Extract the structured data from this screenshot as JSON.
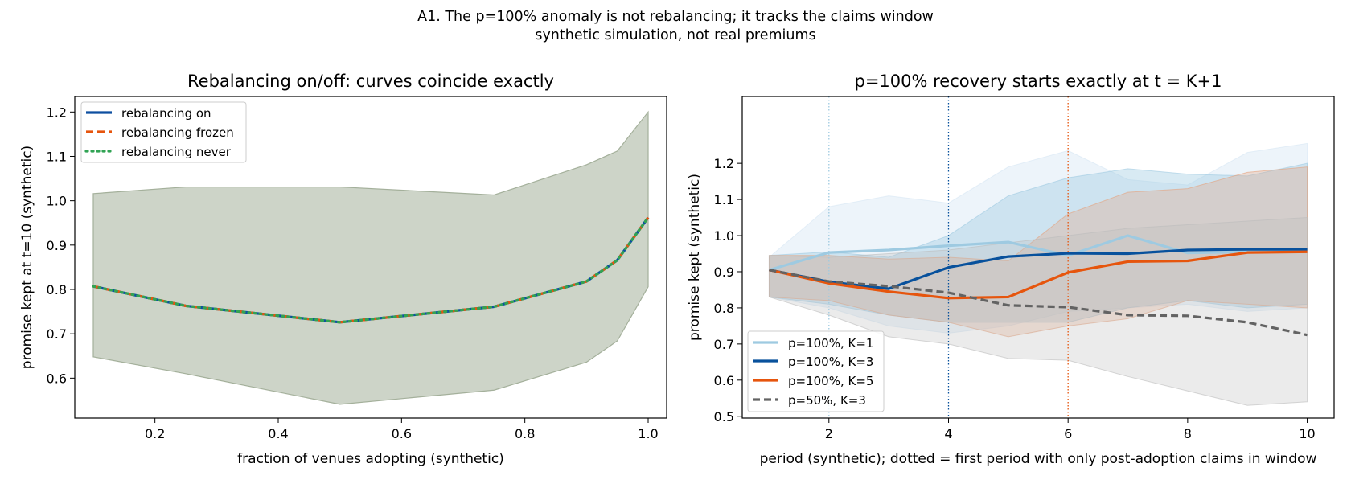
{
  "figure": {
    "suptitle_line1": "A1. The p=100% anomaly is not rebalancing; it tracks the claims window",
    "suptitle_line2": "synthetic simulation, not real premiums"
  },
  "colors": {
    "rebal_on": "#0d4fa0",
    "rebal_frozen": "#e6550d",
    "rebal_never": "#31a354",
    "band_left": "#a4b09b",
    "k1": "#9ecae1",
    "k3": "#08519c",
    "k5": "#e6550d",
    "p50": "#636363"
  },
  "chart_data": [
    {
      "type": "line",
      "title": "Rebalancing on/off: curves coincide exactly",
      "xlabel": "fraction of venues adopting (synthetic)",
      "ylabel": "promise kept at t=10 (synthetic)",
      "xlim": [
        0.07,
        1.03
      ],
      "ylim": [
        0.51,
        1.235
      ],
      "xticks": [
        0.2,
        0.4,
        0.6,
        0.8,
        1.0
      ],
      "xtick_labels": [
        "0.2",
        "0.4",
        "0.6",
        "0.8",
        "1.0"
      ],
      "yticks": [
        0.6,
        0.7,
        0.8,
        0.9,
        1.0,
        1.1,
        1.2
      ],
      "ytick_labels": [
        "0.6",
        "0.7",
        "0.8",
        "0.9",
        "1.0",
        "1.1",
        "1.2"
      ],
      "legend_position": "top-left",
      "x": [
        0.1,
        0.25,
        0.5,
        0.75,
        0.9,
        0.95,
        1.0
      ],
      "band": {
        "lower": [
          0.648,
          0.61,
          0.541,
          0.573,
          0.636,
          0.684,
          0.806
        ],
        "upper": [
          1.016,
          1.031,
          1.031,
          1.013,
          1.081,
          1.112,
          1.2
        ]
      },
      "series": [
        {
          "name": "rebalancing on",
          "style": "solid",
          "values": [
            0.807,
            0.763,
            0.726,
            0.761,
            0.818,
            0.866,
            0.962
          ]
        },
        {
          "name": "rebalancing frozen",
          "style": "dashed",
          "values": [
            0.807,
            0.763,
            0.726,
            0.761,
            0.818,
            0.866,
            0.962
          ]
        },
        {
          "name": "rebalancing never",
          "style": "dotted",
          "values": [
            0.807,
            0.763,
            0.726,
            0.761,
            0.818,
            0.866,
            0.962
          ]
        }
      ]
    },
    {
      "type": "line",
      "title": "p=100% recovery starts exactly at t = K+1",
      "xlabel": "period (synthetic); dotted = first period with only post-adoption claims in window",
      "ylabel": "promise kept (synthetic)",
      "xlim": [
        0.55,
        10.45
      ],
      "ylim": [
        0.495,
        1.385
      ],
      "xticks": [
        2,
        4,
        6,
        8,
        10
      ],
      "xtick_labels": [
        "2",
        "4",
        "6",
        "8",
        "10"
      ],
      "yticks": [
        0.5,
        0.6,
        0.7,
        0.8,
        0.9,
        1.0,
        1.1,
        1.2
      ],
      "ytick_labels": [
        "0.5",
        "0.6",
        "0.7",
        "0.8",
        "0.9",
        "1.0",
        "1.1",
        "1.2"
      ],
      "legend_position": "bottom-left",
      "x": [
        1,
        2,
        3,
        4,
        5,
        6,
        7,
        8,
        9,
        10
      ],
      "vlines": [
        2,
        4,
        6
      ],
      "series": [
        {
          "name": "p=100%, K=1",
          "style": "solid",
          "values": [
            0.905,
            0.953,
            0.96,
            0.972,
            0.982,
            0.945,
            1.0,
            0.952,
            0.955,
            0.96
          ],
          "lower": [
            0.83,
            0.8,
            0.75,
            0.73,
            0.75,
            0.79,
            0.8,
            0.81,
            0.79,
            0.8
          ],
          "upper": [
            0.94,
            1.08,
            1.11,
            1.09,
            1.19,
            1.235,
            1.155,
            1.14,
            1.23,
            1.255
          ]
        },
        {
          "name": "p=100%, K=3",
          "style": "solid",
          "values": [
            0.905,
            0.872,
            0.853,
            0.912,
            0.942,
            0.951,
            0.95,
            0.96,
            0.962,
            0.962
          ],
          "lower": [
            0.83,
            0.81,
            0.78,
            0.76,
            0.76,
            0.76,
            0.8,
            0.82,
            0.8,
            0.81
          ],
          "upper": [
            0.945,
            0.955,
            0.94,
            1.0,
            1.11,
            1.16,
            1.185,
            1.17,
            1.165,
            1.2
          ]
        },
        {
          "name": "p=100%, K=5",
          "style": "solid",
          "values": [
            0.905,
            0.868,
            0.845,
            0.827,
            0.83,
            0.898,
            0.928,
            0.93,
            0.953,
            0.955
          ],
          "lower": [
            0.83,
            0.82,
            0.78,
            0.76,
            0.72,
            0.75,
            0.77,
            0.82,
            0.81,
            0.8
          ],
          "upper": [
            0.945,
            0.945,
            0.935,
            0.94,
            0.93,
            1.06,
            1.12,
            1.13,
            1.175,
            1.19
          ]
        },
        {
          "name": "p=50%, K=3",
          "style": "dashed",
          "values": [
            0.905,
            0.873,
            0.86,
            0.842,
            0.807,
            0.802,
            0.78,
            0.778,
            0.76,
            0.725
          ],
          "lower": [
            0.83,
            0.78,
            0.72,
            0.7,
            0.66,
            0.655,
            0.61,
            0.57,
            0.53,
            0.54
          ],
          "upper": [
            0.945,
            0.94,
            0.95,
            0.96,
            0.98,
            1.0,
            1.02,
            1.03,
            1.04,
            1.05
          ]
        }
      ]
    }
  ]
}
